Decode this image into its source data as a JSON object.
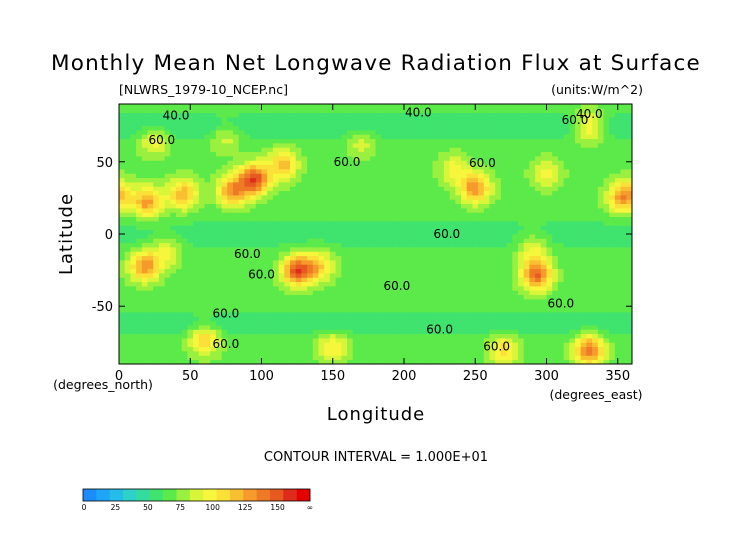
{
  "chart_data": {
    "type": "heatmap",
    "title": "Monthly Mean Net Longwave Radiation Flux at Surface",
    "source_label": "[NLWRS_1979-10_NCEP.nc]",
    "units_label": "(units:W/m^2)",
    "xlabel": "Longitude",
    "ylabel": "Latitude",
    "x_unit_label": "(degrees_east)",
    "y_unit_label": "(degrees_north)",
    "xlim": [
      0,
      360
    ],
    "ylim": [
      -90,
      90
    ],
    "x_ticks": [
      0,
      50,
      100,
      150,
      200,
      250,
      300,
      350
    ],
    "y_ticks": [
      -50,
      0,
      50
    ],
    "contour_interval_text": "CONTOUR INTERVAL = 1.000E+01",
    "contour_labels": [
      {
        "text": "40.0",
        "lon": 40,
        "lat": 82
      },
      {
        "text": "40.0",
        "lon": 210,
        "lat": 84
      },
      {
        "text": "40.0",
        "lon": 330,
        "lat": 83
      },
      {
        "text": "60.0",
        "lon": 30,
        "lat": 65
      },
      {
        "text": "60.0",
        "lon": 160,
        "lat": 50
      },
      {
        "text": "60.0",
        "lon": 255,
        "lat": 49
      },
      {
        "text": "60.0",
        "lon": 320,
        "lat": 79
      },
      {
        "text": "60.0",
        "lon": 230,
        "lat": 0
      },
      {
        "text": "60.0",
        "lon": 90,
        "lat": -14
      },
      {
        "text": "60.0",
        "lon": 100,
        "lat": -28
      },
      {
        "text": "60.0",
        "lon": 195,
        "lat": -36
      },
      {
        "text": "60.0",
        "lon": 310,
        "lat": -48
      },
      {
        "text": "60.0",
        "lon": 75,
        "lat": -55
      },
      {
        "text": "60.0",
        "lon": 225,
        "lat": -66
      },
      {
        "text": "60.0",
        "lon": 265,
        "lat": -78
      },
      {
        "text": "60.0",
        "lon": 75,
        "lat": -76
      }
    ],
    "hotspots": [
      {
        "lon": 25,
        "lat": 65,
        "peak": 95
      },
      {
        "lon": 75,
        "lat": 68,
        "peak": 88
      },
      {
        "lon": 20,
        "lat": 22,
        "peak": 125
      },
      {
        "lon": 45,
        "lat": 28,
        "peak": 118
      },
      {
        "lon": 80,
        "lat": 30,
        "peak": 128
      },
      {
        "lon": 95,
        "lat": 38,
        "peak": 150
      },
      {
        "lon": 115,
        "lat": 48,
        "peak": 115
      },
      {
        "lon": 170,
        "lat": 64,
        "peak": 86
      },
      {
        "lon": 250,
        "lat": 32,
        "peak": 128
      },
      {
        "lon": 235,
        "lat": 45,
        "peak": 95
      },
      {
        "lon": 300,
        "lat": 42,
        "peak": 92
      },
      {
        "lon": 330,
        "lat": 75,
        "peak": 110
      },
      {
        "lon": 352,
        "lat": 25,
        "peak": 110
      },
      {
        "lon": 0,
        "lat": 28,
        "peak": 98
      },
      {
        "lon": 18,
        "lat": -22,
        "peak": 128
      },
      {
        "lon": 33,
        "lat": -12,
        "peak": 95
      },
      {
        "lon": 125,
        "lat": -25,
        "peak": 145
      },
      {
        "lon": 140,
        "lat": -22,
        "peak": 110
      },
      {
        "lon": 293,
        "lat": -28,
        "peak": 140
      },
      {
        "lon": 290,
        "lat": -10,
        "peak": 95
      },
      {
        "lon": 60,
        "lat": -73,
        "peak": 110
      },
      {
        "lon": 150,
        "lat": -78,
        "peak": 100
      },
      {
        "lon": 270,
        "lat": -80,
        "peak": 105
      },
      {
        "lon": 330,
        "lat": -80,
        "peak": 135
      }
    ],
    "bands": [
      {
        "lat": 75,
        "offset": -16,
        "width": 9
      },
      {
        "lat": 0,
        "offset": -10,
        "width": 12
      },
      {
        "lat": -62,
        "offset": -14,
        "width": 8
      }
    ],
    "colorbar": {
      "tick_labels": [
        "0",
        "25",
        "50",
        "75",
        "100",
        "125",
        "150",
        "∞"
      ],
      "levels": [
        0,
        10,
        20,
        30,
        40,
        50,
        60,
        70,
        80,
        90,
        100,
        110,
        120,
        130,
        140,
        150,
        160
      ],
      "colors": [
        "#1a8cff",
        "#1fa5f5",
        "#26bcea",
        "#2dd1c8",
        "#33dc9e",
        "#3fe36e",
        "#5bea4a",
        "#9af03e",
        "#d8f53a",
        "#f6f63c",
        "#fbe038",
        "#f8c031",
        "#f59a2b",
        "#ee7a26",
        "#e65a22",
        "#df2b1c",
        "#e60000"
      ]
    }
  }
}
